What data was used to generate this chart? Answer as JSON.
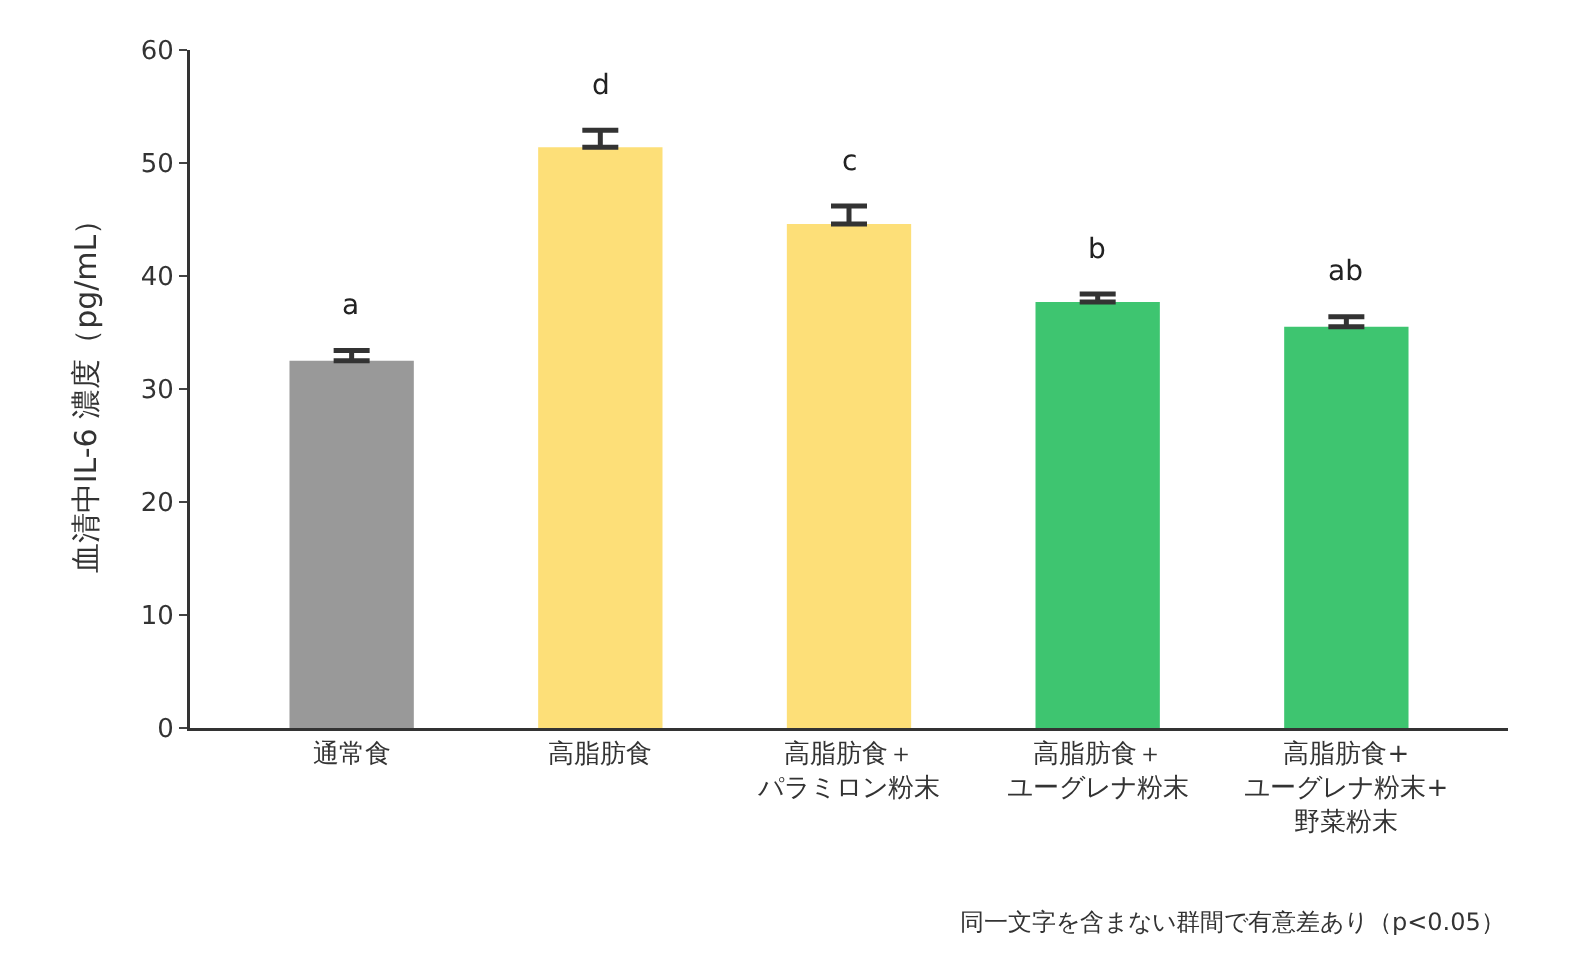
{
  "chart_data": {
    "type": "bar",
    "ylabel": "血清中IL-6 濃度（pg/mL）",
    "categories": [
      "通常食",
      "高脂肪食",
      "高脂肪食＋パラミロン粉末",
      "高脂肪食＋ユーグレナ粉末",
      "高脂肪食+ユーグレナ粉末+野菜粉末"
    ],
    "values": [
      32.5,
      51.4,
      44.6,
      37.7,
      35.5
    ],
    "colors": [
      "#999999",
      "#fddf78",
      "#fddf78",
      "#3ec570",
      "#3ec570"
    ],
    "errors": [
      0.9,
      1.5,
      1.6,
      0.7,
      0.9
    ],
    "ylim": [
      0,
      60
    ],
    "yticks": [
      0,
      10,
      20,
      30,
      40,
      50,
      60
    ],
    "grid": false,
    "annotations": [
      "a",
      "d",
      "c",
      "b",
      "ab",
      "同一文字を含まない群間で有意差あり（p<0.05）"
    ]
  }
}
